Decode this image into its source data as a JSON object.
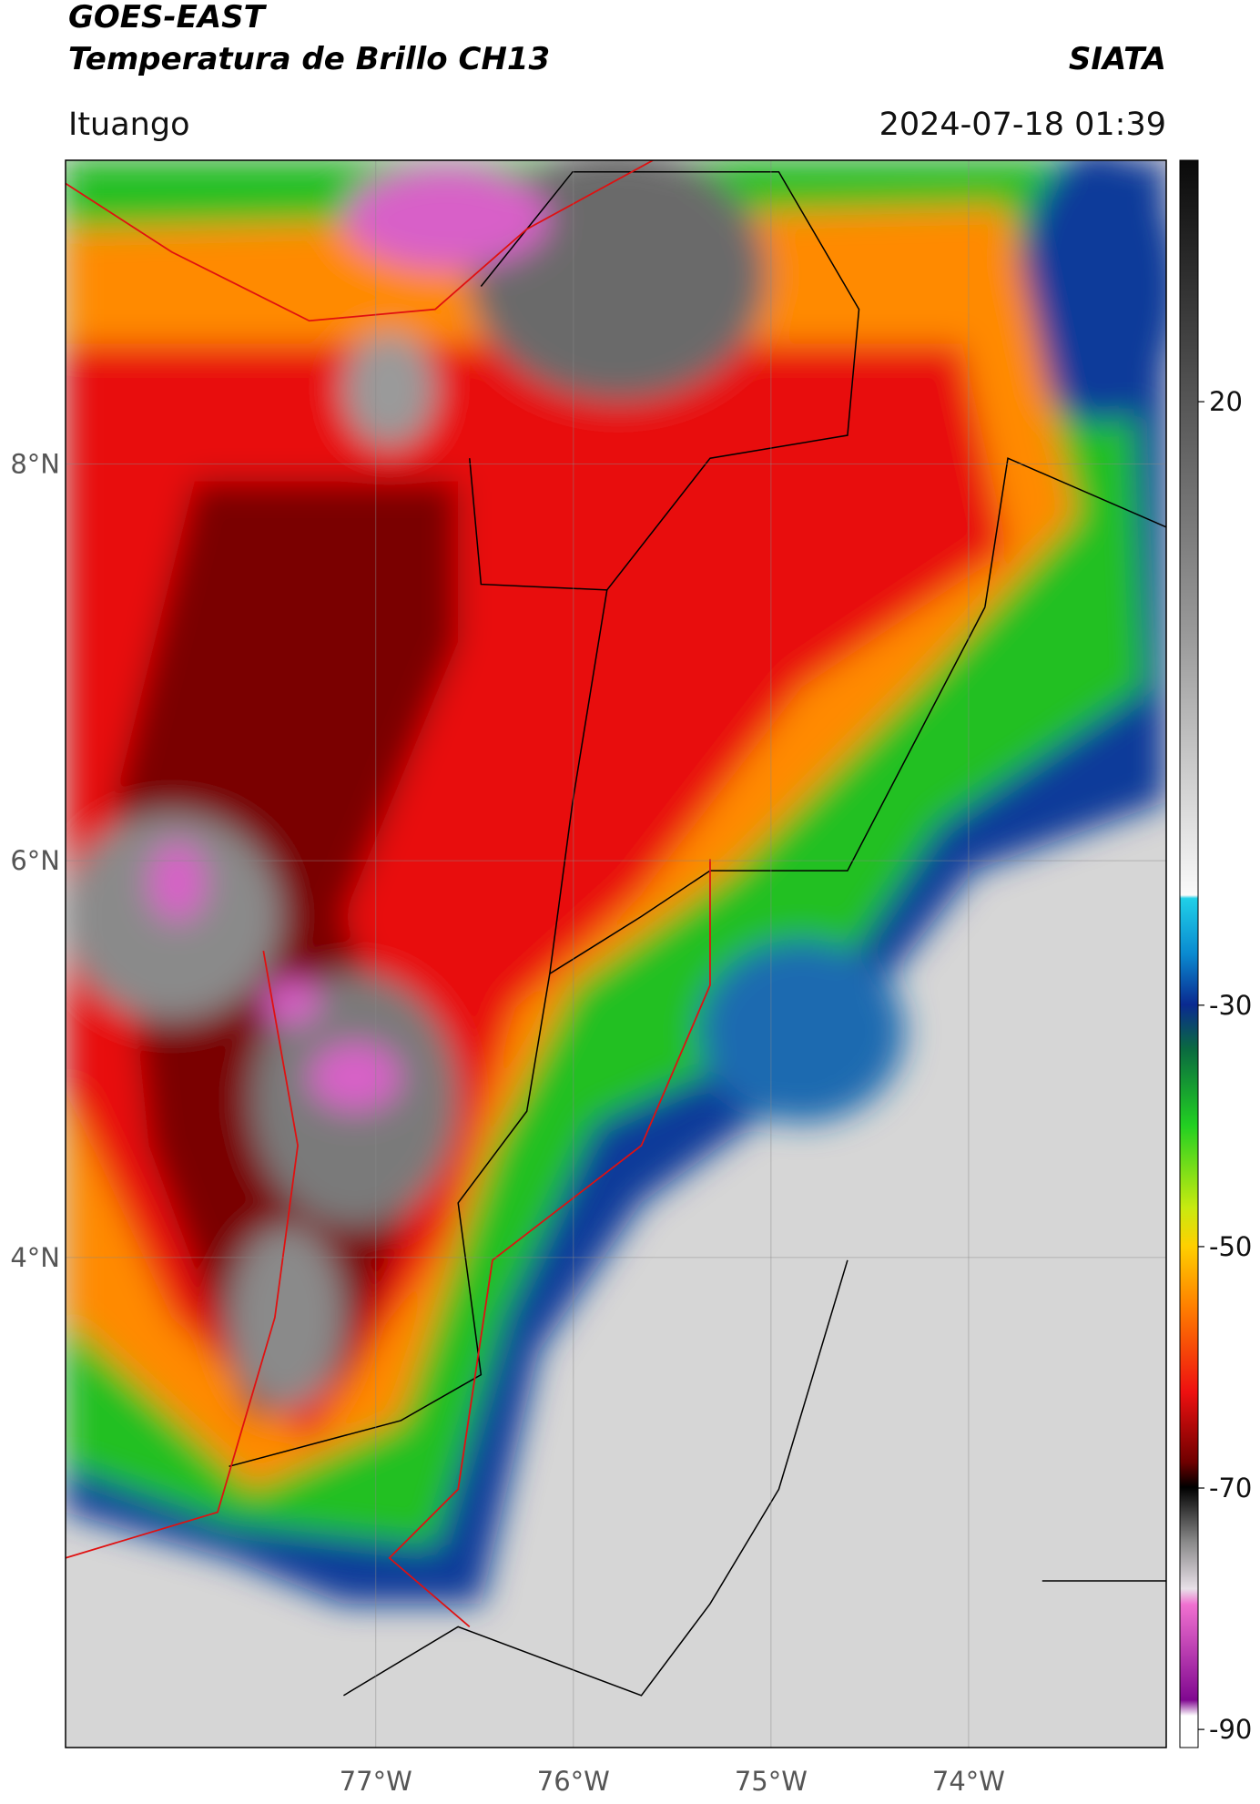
{
  "header": {
    "source": "GOES-EAST",
    "product": "Temperatura de Brillo CH13",
    "agency": "SIATA",
    "region": "Ituango",
    "datetime": "2024-07-18 01:39"
  },
  "chart_data": {
    "type": "map",
    "grid": true,
    "xlim": [
      -78.57,
      -73.0
    ],
    "ylim": [
      1.53,
      9.53
    ],
    "xticks": [
      {
        "value": -77,
        "label": "77°W"
      },
      {
        "value": -76,
        "label": "76°W"
      },
      {
        "value": -75,
        "label": "75°W"
      },
      {
        "value": -74,
        "label": "74°W"
      }
    ],
    "yticks": [
      {
        "value": 8,
        "label": "8°N"
      },
      {
        "value": 6,
        "label": "6°N"
      },
      {
        "value": 4,
        "label": "4°N"
      }
    ],
    "colorbar": {
      "clim": [
        -91.5,
        40
      ],
      "ticks": [
        20,
        -30,
        -50,
        -70,
        -90
      ]
    }
  }
}
